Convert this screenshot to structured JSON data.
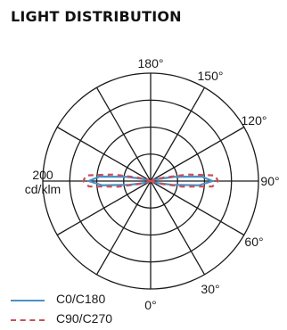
{
  "title": "LIGHT DISTRIBUTION",
  "chart_data": {
    "type": "polar",
    "scale_label": [
      "200",
      "cd/klm"
    ],
    "rings": 4,
    "angle_labels": [
      {
        "angle": 0,
        "text": "0°"
      },
      {
        "angle": 30,
        "text": "30°"
      },
      {
        "angle": 60,
        "text": "60°"
      },
      {
        "angle": 90,
        "text": "90°"
      },
      {
        "angle": 120,
        "text": "120°"
      },
      {
        "angle": 150,
        "text": "150°"
      },
      {
        "angle": 180,
        "text": "180°"
      }
    ],
    "series": [
      {
        "name": "C0/C180",
        "color": "#4a90c8",
        "style": "solid",
        "points": [
          {
            "angle": 90,
            "value": 115
          },
          {
            "angle": 85,
            "value": 90
          },
          {
            "angle": 80,
            "value": 40
          },
          {
            "angle": 75,
            "value": 15
          },
          {
            "angle": 70,
            "value": 5
          },
          {
            "angle": 60,
            "value": 0
          },
          {
            "angle": 95,
            "value": 95
          },
          {
            "angle": 100,
            "value": 45
          },
          {
            "angle": 105,
            "value": 15
          },
          {
            "angle": 110,
            "value": 5
          },
          {
            "angle": 120,
            "value": 0
          }
        ]
      },
      {
        "name": "C90/C270",
        "color": "#c8505a",
        "style": "dashed",
        "points": [
          {
            "angle": 90,
            "value": 125
          },
          {
            "angle": 85,
            "value": 115
          },
          {
            "angle": 80,
            "value": 60
          },
          {
            "angle": 75,
            "value": 20
          },
          {
            "angle": 70,
            "value": 5
          },
          {
            "angle": 60,
            "value": 0
          },
          {
            "angle": 95,
            "value": 120
          },
          {
            "angle": 100,
            "value": 70
          },
          {
            "angle": 105,
            "value": 25
          },
          {
            "angle": 110,
            "value": 8
          },
          {
            "angle": 120,
            "value": 0
          }
        ]
      }
    ],
    "scale_max": 200,
    "grid": true
  },
  "legend": [
    {
      "label": "C0/C180",
      "color": "#4a90c8",
      "style": "solid"
    },
    {
      "label": "C90/C270",
      "color": "#c8505a",
      "style": "dashed"
    }
  ]
}
